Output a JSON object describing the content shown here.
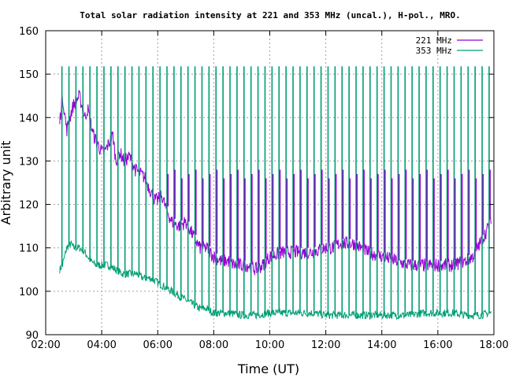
{
  "chart_data": {
    "type": "line",
    "title": "Total solar radiation intensity at 221 and 353 MHz (uncal.), H-pol., MRO.",
    "xlabel": "Time (UT)",
    "ylabel": "Arbitrary unit",
    "x_ticks": [
      "02:00",
      "04:00",
      "06:00",
      "08:00",
      "10:00",
      "12:00",
      "14:00",
      "16:00",
      "18:00"
    ],
    "y_ticks": [
      90,
      100,
      110,
      120,
      130,
      140,
      150,
      160
    ],
    "xlim_hours": [
      2,
      18
    ],
    "ylim": [
      90,
      160
    ],
    "grid": true,
    "legend_position": "top-right",
    "series": [
      {
        "name": "221 MHz",
        "color": "#9400d3",
        "x_hours": [
          2.5,
          2.6,
          2.75,
          2.9,
          3.0,
          3.2,
          3.4,
          3.5,
          3.7,
          3.85,
          4.0,
          4.1,
          4.25,
          4.4,
          4.5,
          4.65,
          4.8,
          5.0,
          5.2,
          5.4,
          5.55,
          5.75,
          5.9,
          6.0,
          6.15,
          6.3,
          6.5,
          6.75,
          7.0,
          7.25,
          7.5,
          7.75,
          8.0,
          8.25,
          8.5,
          8.75,
          9.0,
          9.25,
          9.5,
          9.75,
          10.0,
          10.5,
          11.0,
          11.5,
          12.0,
          12.25,
          12.5,
          12.75,
          13.0,
          13.5,
          14.0,
          14.5,
          15.0,
          15.5,
          16.0,
          16.5,
          17.0,
          17.25,
          17.5,
          17.75,
          17.9
        ],
        "values": [
          139,
          145,
          137,
          141,
          143,
          145,
          140,
          142,
          136,
          134,
          132,
          132,
          134,
          136,
          130,
          132,
          130,
          131,
          128,
          127,
          126,
          123,
          121,
          121,
          122,
          119,
          116,
          115,
          116,
          113,
          110,
          110,
          108,
          107,
          107,
          106,
          106,
          106,
          105,
          106,
          108,
          109,
          109,
          109,
          110,
          110,
          111,
          111,
          111,
          109,
          108,
          107,
          106,
          106,
          106,
          106,
          107,
          108,
          111,
          114,
          117
        ]
      },
      {
        "name": "353 MHz",
        "color": "#009e73",
        "x_hours": [
          2.5,
          2.6,
          2.75,
          2.9,
          3.0,
          3.2,
          3.4,
          3.6,
          3.8,
          4.0,
          4.25,
          4.5,
          4.75,
          5.0,
          5.25,
          5.5,
          5.75,
          6.0,
          6.25,
          6.5,
          6.75,
          7.0,
          7.25,
          7.5,
          7.75,
          8.0,
          8.5,
          9.0,
          9.5,
          10.0,
          10.5,
          11.0,
          11.5,
          12.0,
          12.5,
          13.0,
          13.5,
          14.0,
          14.5,
          15.0,
          15.5,
          16.0,
          16.5,
          17.0,
          17.5,
          17.9
        ],
        "values": [
          105,
          106,
          110,
          111,
          110,
          110,
          109,
          107,
          106,
          106,
          106,
          105,
          104,
          104,
          104,
          103,
          103,
          102,
          101,
          100,
          99,
          98,
          97,
          96,
          96,
          95,
          95,
          94.5,
          94.5,
          95,
          95,
          95,
          95,
          94.5,
          94.5,
          94.5,
          94.5,
          94.5,
          94.5,
          94.5,
          95,
          95,
          95,
          94.5,
          94.5,
          95
        ]
      }
    ]
  }
}
